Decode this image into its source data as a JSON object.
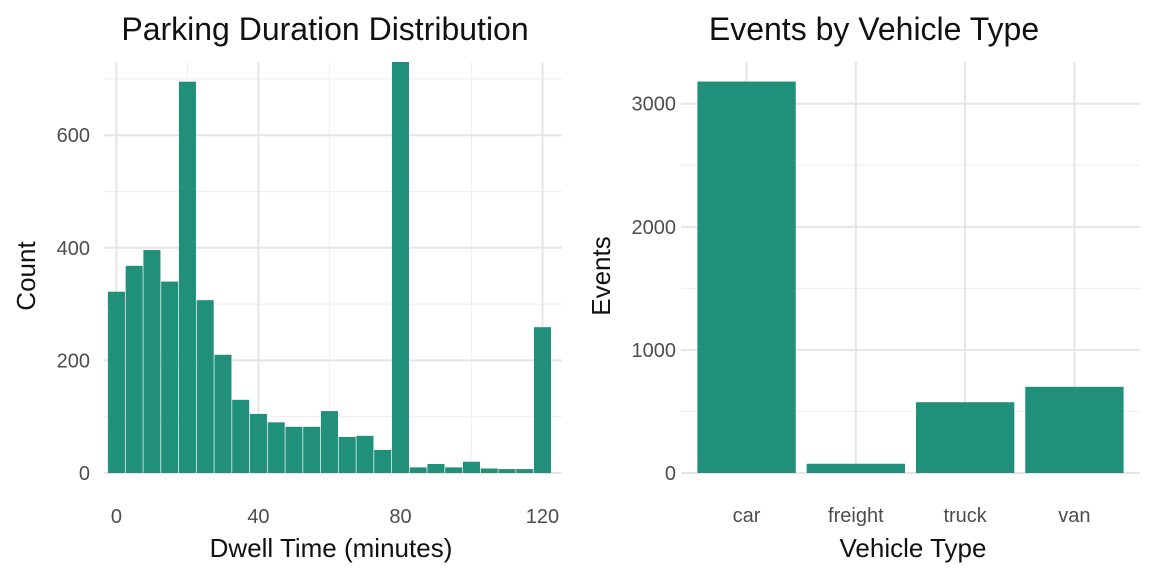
{
  "chart_data": [
    {
      "type": "bar",
      "title": "Parking Duration Distribution",
      "xlabel": "Dwell Time (minutes)",
      "ylabel": "Count",
      "xlim": [
        -3.5,
        125.5
      ],
      "ylim": [
        0,
        730
      ],
      "xticks": [
        0,
        40,
        80,
        120
      ],
      "yticks": [
        0,
        200,
        400,
        600
      ],
      "color": "#21907a",
      "grid": true,
      "bin_width": 5,
      "x": [
        0,
        5,
        10,
        15,
        20,
        25,
        30,
        35,
        40,
        45,
        50,
        55,
        60,
        65,
        70,
        75,
        80,
        85,
        90,
        95,
        100,
        105,
        110,
        115,
        120
      ],
      "values": [
        322,
        368,
        396,
        340,
        695,
        307,
        210,
        130,
        105,
        90,
        82,
        82,
        110,
        64,
        66,
        41,
        730,
        10,
        16,
        10,
        20,
        8,
        7,
        7,
        259
      ]
    },
    {
      "type": "bar",
      "title": "Events by Vehicle Type",
      "xlabel": "Vehicle Type",
      "ylabel": "Events",
      "categories": [
        "car",
        "freight",
        "truck",
        "van"
      ],
      "values": [
        3180,
        75,
        575,
        700
      ],
      "ylim": [
        0,
        3180
      ],
      "yticks": [
        0,
        1000,
        2000,
        3000
      ],
      "color": "#21907a",
      "grid": true
    }
  ]
}
